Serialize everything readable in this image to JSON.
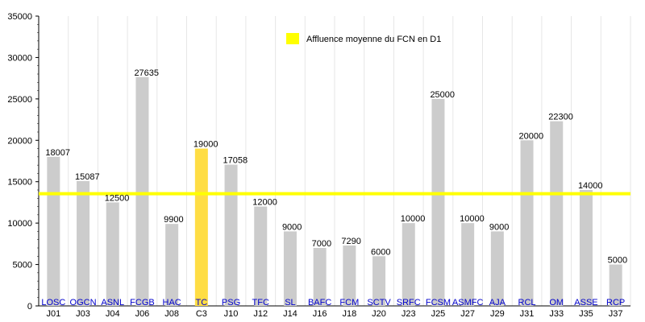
{
  "chart_data": {
    "type": "bar",
    "ylim": [
      0,
      35000
    ],
    "y_ticks": [
      0,
      5000,
      10000,
      15000,
      20000,
      25000,
      30000,
      35000
    ],
    "grid": true,
    "categories": [
      "LOSC",
      "OGCN",
      "ASNL",
      "FCGB",
      "HAC",
      "TC",
      "PSG",
      "TFC",
      "SL",
      "BAFC",
      "FCM",
      "SCTV",
      "SRFC",
      "FCSM",
      "ASMFC",
      "AJA",
      "RCL",
      "OM",
      "ASSE",
      "RCP"
    ],
    "matchdays": [
      "J01",
      "J03",
      "J04",
      "J06",
      "J08",
      "C3",
      "J10",
      "J12",
      "J14",
      "J16",
      "J18",
      "J20",
      "J23",
      "J25",
      "J27",
      "J29",
      "J31",
      "J33",
      "J35",
      "J37"
    ],
    "values": [
      18007,
      15087,
      12500,
      27635,
      9900,
      19000,
      17058,
      12000,
      9000,
      7000,
      7290,
      6000,
      10000,
      25000,
      10000,
      9000,
      20000,
      22300,
      14000,
      5000
    ],
    "value_labels": [
      "18007",
      "15087",
      "12500",
      "27635",
      "9900",
      "19000",
      "17058",
      "12000",
      "9000",
      "7000",
      "7290",
      "6000",
      "10000",
      "25000",
      "10000",
      "9000",
      "20000",
      "22300",
      "14000",
      "5000"
    ],
    "highlight_index": 5,
    "average": 13550,
    "legend": {
      "label": "Affluence moyenne du FCN en D1",
      "position": "top-center"
    },
    "colors": {
      "bar": "#cccccc",
      "highlight": "#ffdd44",
      "average": "#ffff00",
      "grid": "#e6e6e6",
      "category_text": "#0000cc"
    }
  }
}
